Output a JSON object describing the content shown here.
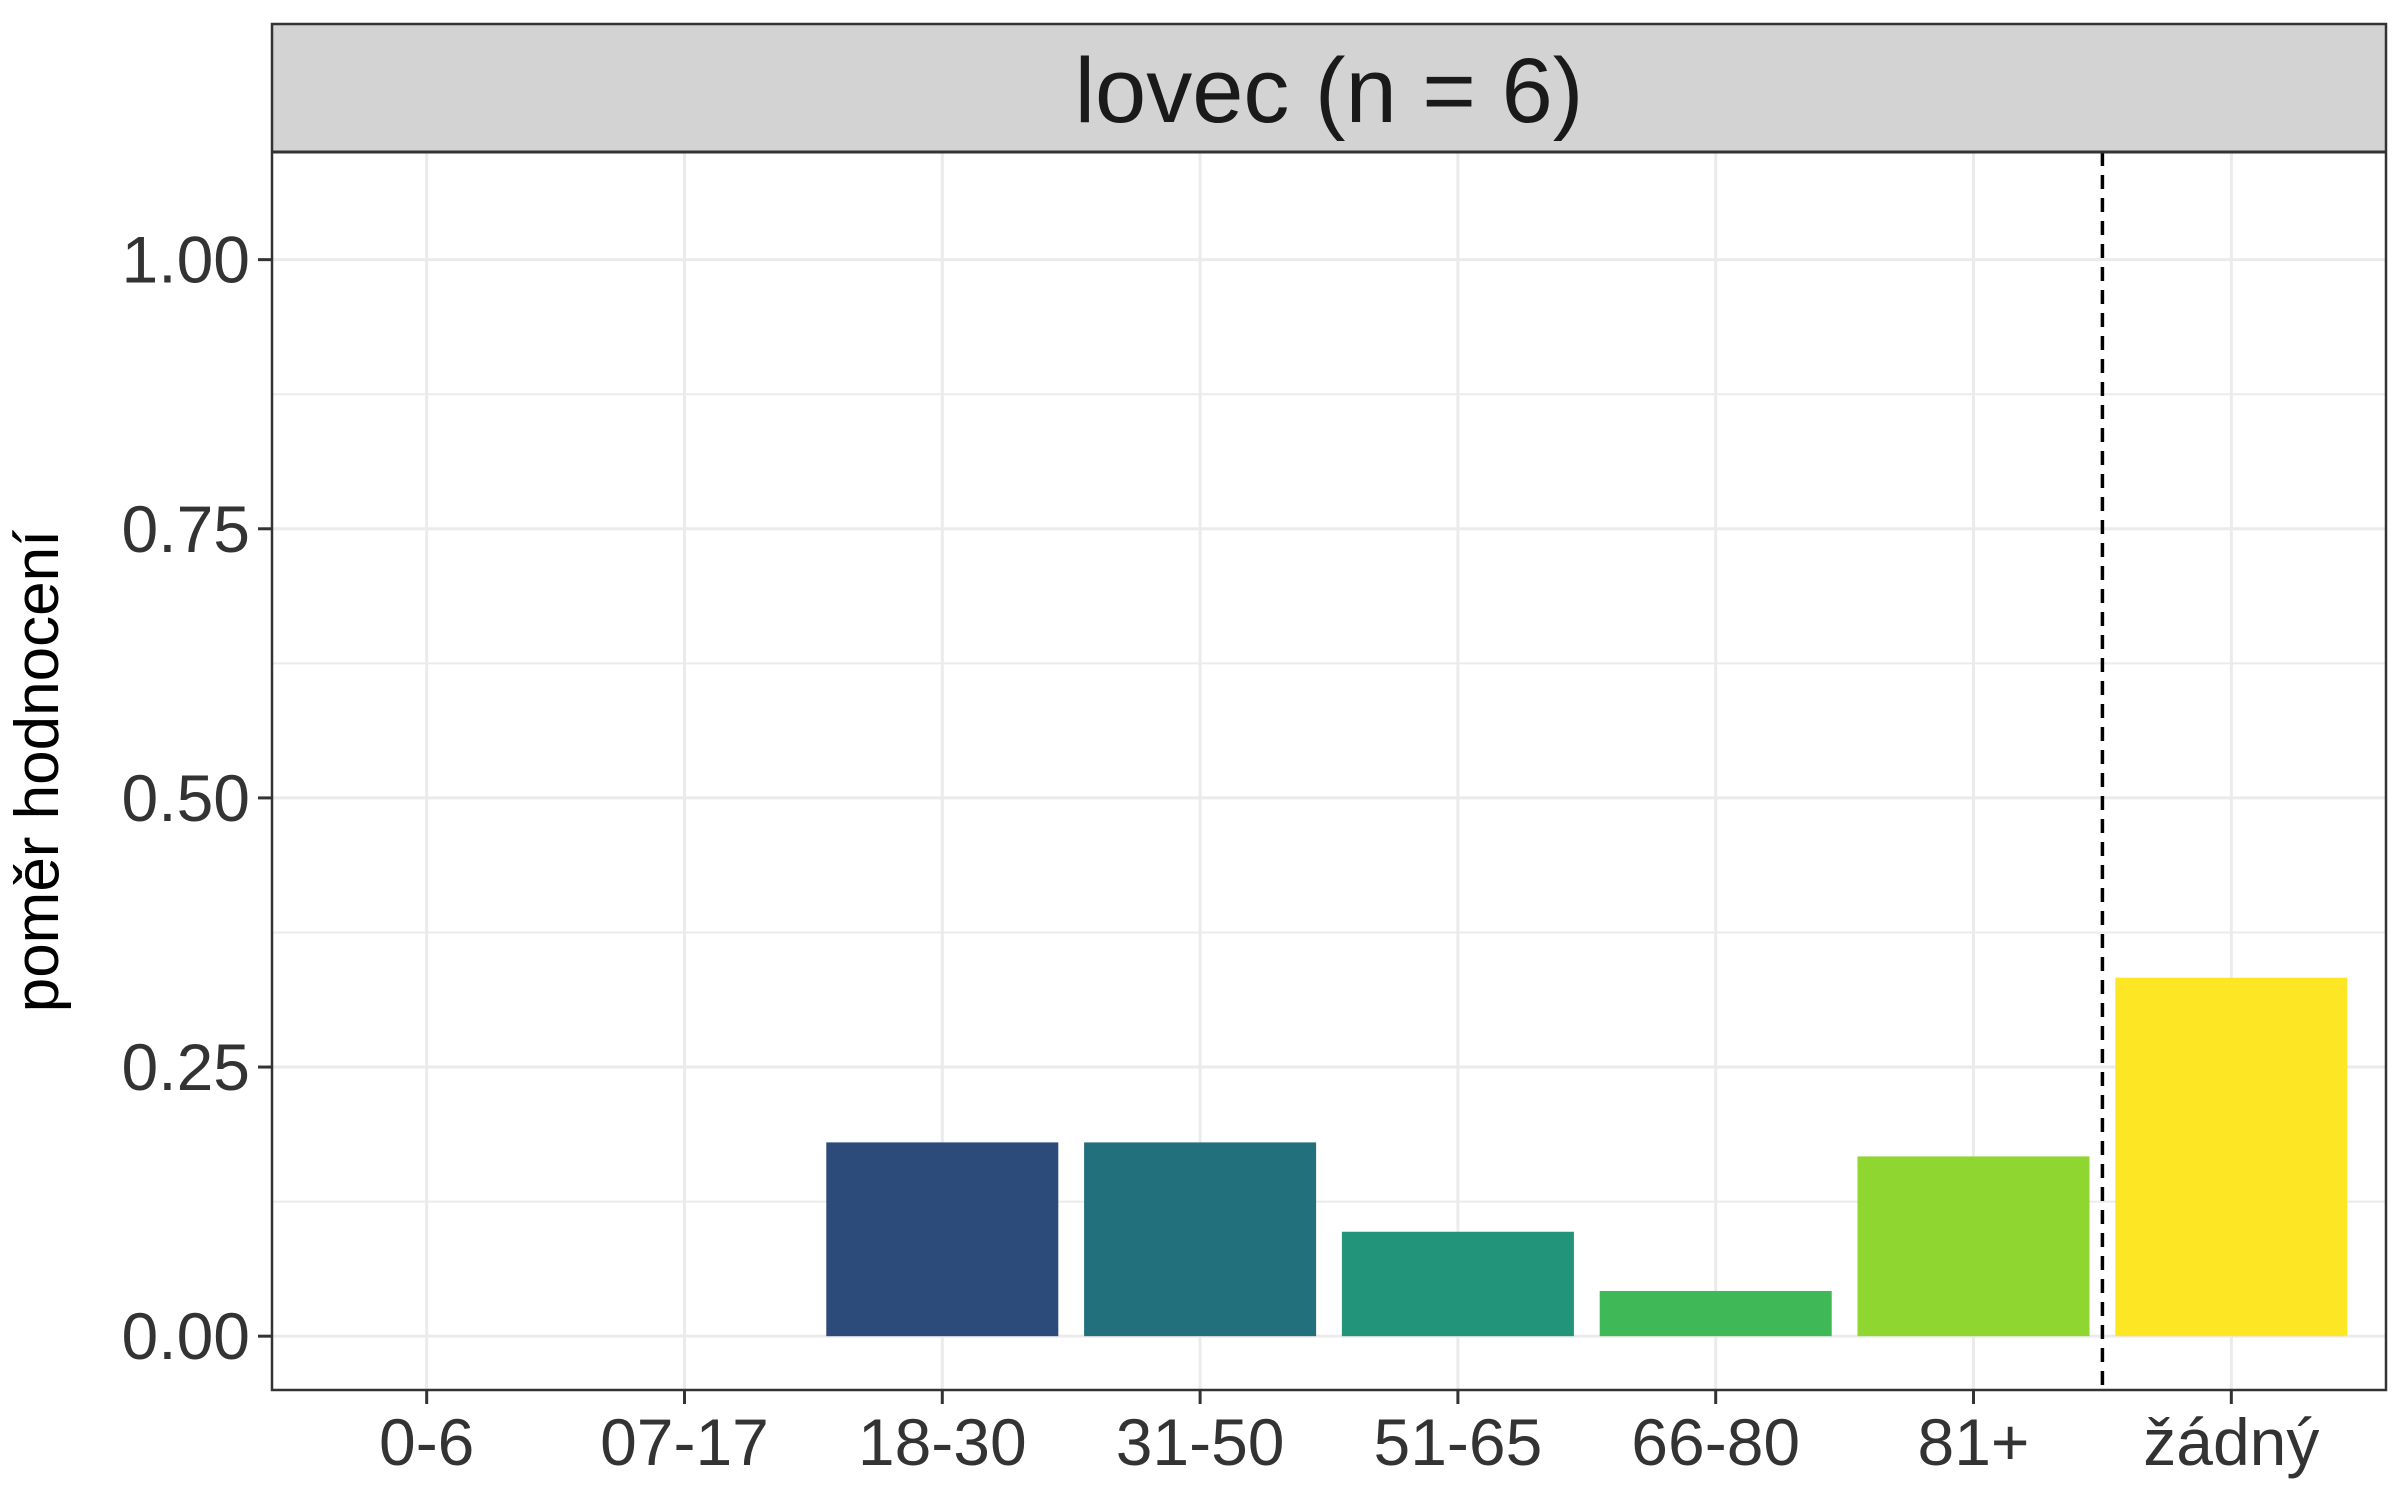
{
  "chart_data": {
    "type": "bar",
    "title": "lovec (n = 6)",
    "xlabel": "",
    "ylabel": "poměr hodnocení",
    "categories": [
      "0-6",
      "07-17",
      "18-30",
      "31-50",
      "51-65",
      "66-80",
      "81+",
      "žádný"
    ],
    "values": [
      0,
      0,
      0.18,
      0.18,
      0.097,
      0.042,
      0.167,
      0.333
    ],
    "bar_colors": [
      "#440154",
      "#46337E",
      "#2C4A7A",
      "#22707C",
      "#21947A",
      "#3FB957",
      "#8FD631",
      "#FDE725"
    ],
    "ylim": [
      -0.05,
      1.1
    ],
    "yticks": [
      0,
      0.25,
      0.5,
      0.75,
      1.0
    ],
    "ytick_labels": [
      "0.00",
      "0.25",
      "0.50",
      "0.75",
      "1.00"
    ],
    "reference_line": {
      "style": "dashed",
      "position_between": [
        "81+",
        "žádný"
      ]
    },
    "grid": true,
    "legend": "none",
    "theme": {
      "strip_background": "#D3D3D3",
      "grid_color": "#EBEBEB",
      "border_color": "#333333",
      "background": "#FFFFFF"
    }
  }
}
